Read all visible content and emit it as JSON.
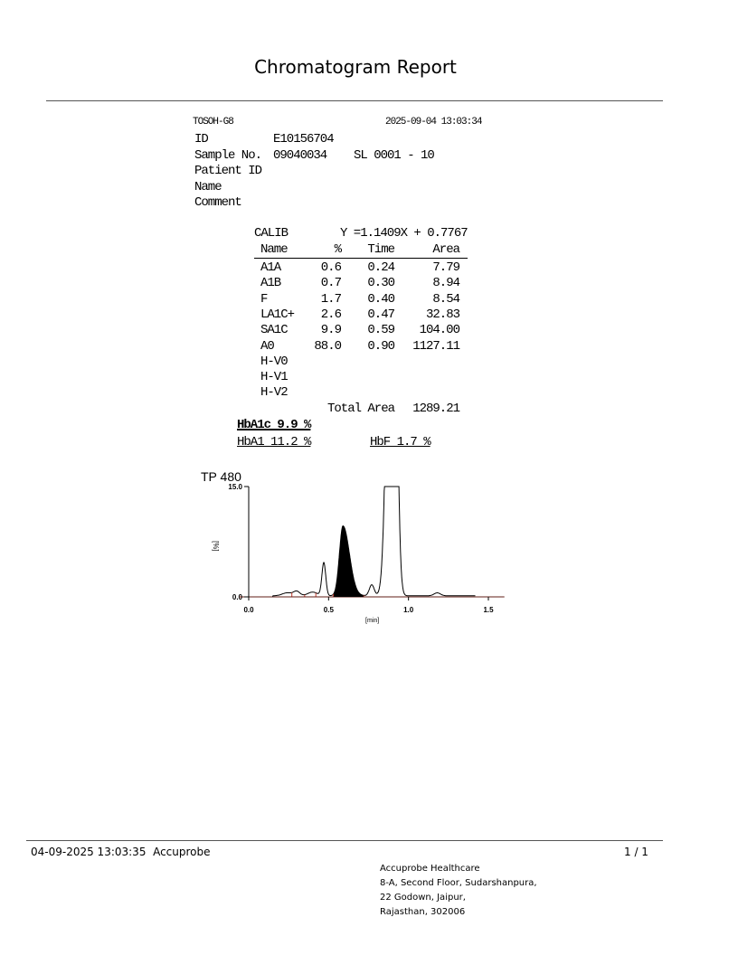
{
  "title": "Chromatogram Report",
  "report": {
    "instrument": "TOSOH-G8",
    "datetime": "2025-09-04 13:03:34",
    "fields": [
      {
        "label": "ID",
        "value": "E10156704"
      },
      {
        "label": "Sample No.",
        "value": "09040034",
        "extra": "SL 0001 - 10"
      },
      {
        "label": "Patient ID",
        "value": ""
      },
      {
        "label": "Name",
        "value": ""
      },
      {
        "label": "Comment",
        "value": ""
      }
    ],
    "calib_label": "CALIB",
    "calib_equation": "Y =1.1409X + 0.7767",
    "columns": [
      "Name",
      "%",
      "Time",
      "Area"
    ],
    "rows": [
      [
        "A1A",
        "0.6",
        "0.24",
        "7.79"
      ],
      [
        "A1B",
        "0.7",
        "0.30",
        "8.94"
      ],
      [
        "F",
        "1.7",
        "0.40",
        "8.54"
      ],
      [
        "LA1C+",
        "2.6",
        "0.47",
        "32.83"
      ],
      [
        "SA1C",
        "9.9",
        "0.59",
        "104.00"
      ],
      [
        "A0",
        "88.0",
        "0.90",
        "1127.11"
      ],
      [
        "H-V0",
        "",
        "",
        ""
      ],
      [
        "H-V1",
        "",
        "",
        ""
      ],
      [
        "H-V2",
        "",
        "",
        ""
      ]
    ],
    "total_area_label": "Total Area",
    "total_area": "1289.21",
    "hba1c": "HbA1c 9.9 %",
    "hba1": "HbA1 11.2 %",
    "hbf": "HbF 1.7 %"
  },
  "chart_data": {
    "type": "line",
    "title": "TP  480",
    "xlabel": "[min]",
    "ylabel": "[%]",
    "xlim": [
      0.0,
      1.6
    ],
    "ylim": [
      0.0,
      15.0
    ],
    "xticks": [
      "0.0",
      "0.5",
      "1.0",
      "1.5"
    ],
    "yticks": [
      "0.0",
      "15.0"
    ],
    "peaks": [
      {
        "name": "A1A",
        "time": 0.24,
        "height": 0.4
      },
      {
        "name": "A1B",
        "time": 0.3,
        "height": 0.6
      },
      {
        "name": "F",
        "time": 0.4,
        "height": 0.5
      },
      {
        "name": "LA1C+",
        "time": 0.47,
        "height": 4.5
      },
      {
        "name": "SA1C",
        "time": 0.59,
        "height": 9.5,
        "shaded": true
      },
      {
        "name": "",
        "time": 0.77,
        "height": 1.5
      },
      {
        "name": "A0",
        "time": 0.9,
        "height": 80
      },
      {
        "name": "",
        "time": 1.18,
        "height": 0.4
      }
    ],
    "segment_marks": [
      0.27,
      0.35,
      0.42,
      0.53,
      0.72
    ],
    "colors": {
      "trace": "#000000",
      "baseline": "#c0392b",
      "shaded": "#000000"
    }
  },
  "footer": {
    "printed": "04-09-2025 13:03:35  Accuprobe",
    "page": "1 / 1",
    "address": [
      "Accuprobe Healthcare",
      "8-A, Second Floor, Sudarshanpura,",
      "22 Godown, Jaipur,",
      "Rajasthan, 302006"
    ]
  }
}
